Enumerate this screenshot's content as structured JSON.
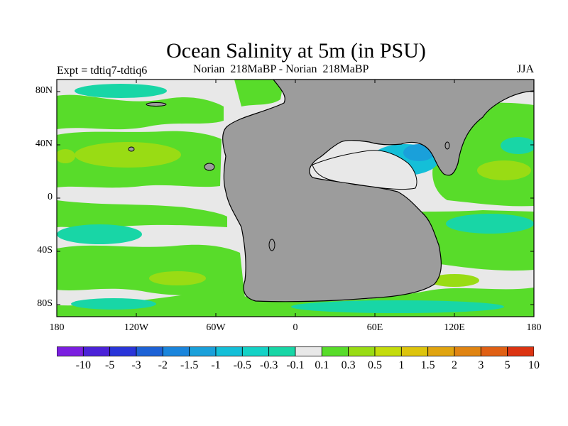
{
  "title": "Ocean Salinity at 5m (in PSU)",
  "subtitle_left": "Expt = tdtiq7-tdtiq6",
  "subtitle_center": "Norian  218MaBP - Norian  218MaBP",
  "subtitle_right": "JJA",
  "axes": {
    "lat_ticks": [
      {
        "label": "80N",
        "lat": 80
      },
      {
        "label": "40N",
        "lat": 40
      },
      {
        "label": "0",
        "lat": 0
      },
      {
        "label": "40S",
        "lat": -40
      },
      {
        "label": "80S",
        "lat": -80
      }
    ],
    "lon_ticks": [
      {
        "label": "180",
        "lon": -180
      },
      {
        "label": "120W",
        "lon": -120
      },
      {
        "label": "60W",
        "lon": -60
      },
      {
        "label": "0",
        "lon": 0
      },
      {
        "label": "60E",
        "lon": 60
      },
      {
        "label": "120E",
        "lon": 120
      },
      {
        "label": "180",
        "lon": 180
      }
    ]
  },
  "colorbar": {
    "colors": [
      "#7b1fe0",
      "#4b22d8",
      "#2a35d9",
      "#1d62d6",
      "#1a85dc",
      "#1aa0da",
      "#14bfd8",
      "#14d2c6",
      "#18d6a6",
      "#e8e8e8",
      "#58dc2a",
      "#99dc14",
      "#c4dc0c",
      "#ddc40c",
      "#e0a410",
      "#e08412",
      "#e06014",
      "#dc3412"
    ],
    "labels": [
      "-10",
      "-5",
      "-3",
      "-2",
      "-1.5",
      "-1",
      "-0.5",
      "-0.3",
      "-0.1",
      "0.1",
      "0.3",
      "0.5",
      "1",
      "1.5",
      "2",
      "3",
      "5",
      "10"
    ]
  },
  "palette": {
    "land": "#9c9c9c",
    "neutral": "#e8e8e8",
    "green": "#58dc2a",
    "yellowgreen": "#99dc14",
    "teal": "#18d6a6",
    "cyan": "#14bfd8",
    "blue": "#1aa0da"
  }
}
